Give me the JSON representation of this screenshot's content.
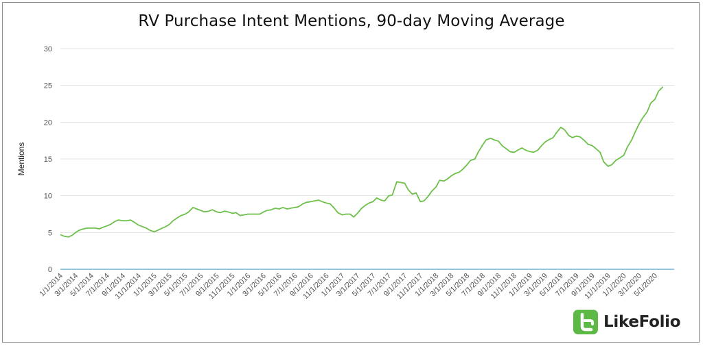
{
  "chart_data": {
    "type": "line",
    "title": "RV Purchase Intent Mentions, 90-day Moving Average",
    "xlabel": "",
    "ylabel": "Mentions",
    "ylim": [
      0,
      30
    ],
    "yticks": [
      0,
      5,
      10,
      15,
      20,
      25,
      30
    ],
    "xlim": [
      "2014-01-01",
      "2020-07-15"
    ],
    "xtick_labels": [
      "1/1/2014",
      "3/1/2014",
      "5/1/2014",
      "7/1/2014",
      "9/1/2014",
      "11/1/2014",
      "1/1/2015",
      "3/1/2015",
      "5/1/2015",
      "7/1/2015",
      "9/1/2015",
      "11/1/2015",
      "1/1/2016",
      "3/1/2016",
      "5/1/2016",
      "7/1/2016",
      "9/1/2016",
      "11/1/2016",
      "1/1/2017",
      "3/1/2017",
      "5/1/2017",
      "7/1/2017",
      "9/1/2017",
      "11/1/2017",
      "1/1/2018",
      "3/1/2018",
      "5/1/2018",
      "7/1/2018",
      "9/1/2018",
      "11/1/2018",
      "1/1/2019",
      "3/1/2019",
      "5/1/2019",
      "7/1/2019",
      "9/1/2019",
      "11/1/2019",
      "1/1/2020",
      "3/1/2020",
      "5/1/2020"
    ],
    "grid": true,
    "legend": "none",
    "series": [
      {
        "color": "#6cc04a",
        "points": [
          [
            "2014-01-01",
            4.7
          ],
          [
            "2014-01-15",
            4.5
          ],
          [
            "2014-02-01",
            4.4
          ],
          [
            "2014-02-15",
            4.6
          ],
          [
            "2014-03-01",
            5.0
          ],
          [
            "2014-03-15",
            5.3
          ],
          [
            "2014-04-01",
            5.5
          ],
          [
            "2014-04-15",
            5.6
          ],
          [
            "2014-05-01",
            5.6
          ],
          [
            "2014-05-15",
            5.6
          ],
          [
            "2014-06-01",
            5.5
          ],
          [
            "2014-06-15",
            5.7
          ],
          [
            "2014-07-01",
            5.9
          ],
          [
            "2014-07-15",
            6.1
          ],
          [
            "2014-08-01",
            6.5
          ],
          [
            "2014-08-15",
            6.7
          ],
          [
            "2014-09-01",
            6.6
          ],
          [
            "2014-09-15",
            6.6
          ],
          [
            "2014-10-01",
            6.7
          ],
          [
            "2014-10-15",
            6.4
          ],
          [
            "2014-11-01",
            6.0
          ],
          [
            "2014-11-15",
            5.8
          ],
          [
            "2014-12-01",
            5.6
          ],
          [
            "2014-12-15",
            5.3
          ],
          [
            "2015-01-01",
            5.1
          ],
          [
            "2015-01-15",
            5.3
          ],
          [
            "2015-02-01",
            5.6
          ],
          [
            "2015-02-15",
            5.8
          ],
          [
            "2015-03-01",
            6.1
          ],
          [
            "2015-03-15",
            6.6
          ],
          [
            "2015-04-01",
            7.0
          ],
          [
            "2015-04-15",
            7.3
          ],
          [
            "2015-05-01",
            7.5
          ],
          [
            "2015-05-15",
            7.8
          ],
          [
            "2015-06-01",
            8.4
          ],
          [
            "2015-06-15",
            8.2
          ],
          [
            "2015-07-01",
            8.0
          ],
          [
            "2015-07-15",
            7.8
          ],
          [
            "2015-08-01",
            7.9
          ],
          [
            "2015-08-15",
            8.1
          ],
          [
            "2015-09-01",
            7.8
          ],
          [
            "2015-09-15",
            7.7
          ],
          [
            "2015-10-01",
            7.9
          ],
          [
            "2015-10-15",
            7.8
          ],
          [
            "2015-11-01",
            7.6
          ],
          [
            "2015-11-15",
            7.7
          ],
          [
            "2015-12-01",
            7.3
          ],
          [
            "2015-12-15",
            7.4
          ],
          [
            "2016-01-01",
            7.5
          ],
          [
            "2016-01-15",
            7.5
          ],
          [
            "2016-02-01",
            7.5
          ],
          [
            "2016-02-15",
            7.5
          ],
          [
            "2016-03-01",
            7.8
          ],
          [
            "2016-03-15",
            8.0
          ],
          [
            "2016-04-01",
            8.1
          ],
          [
            "2016-04-15",
            8.3
          ],
          [
            "2016-05-01",
            8.2
          ],
          [
            "2016-05-15",
            8.4
          ],
          [
            "2016-06-01",
            8.2
          ],
          [
            "2016-06-15",
            8.3
          ],
          [
            "2016-07-01",
            8.4
          ],
          [
            "2016-07-15",
            8.5
          ],
          [
            "2016-08-01",
            8.9
          ],
          [
            "2016-08-15",
            9.1
          ],
          [
            "2016-09-01",
            9.2
          ],
          [
            "2016-09-15",
            9.3
          ],
          [
            "2016-10-01",
            9.4
          ],
          [
            "2016-10-15",
            9.2
          ],
          [
            "2016-11-01",
            9.0
          ],
          [
            "2016-11-15",
            8.9
          ],
          [
            "2016-12-01",
            8.3
          ],
          [
            "2016-12-15",
            7.7
          ],
          [
            "2017-01-01",
            7.4
          ],
          [
            "2017-01-15",
            7.5
          ],
          [
            "2017-02-01",
            7.5
          ],
          [
            "2017-02-15",
            7.1
          ],
          [
            "2017-03-01",
            7.6
          ],
          [
            "2017-03-15",
            8.2
          ],
          [
            "2017-04-01",
            8.7
          ],
          [
            "2017-04-15",
            9.0
          ],
          [
            "2017-05-01",
            9.2
          ],
          [
            "2017-05-15",
            9.7
          ],
          [
            "2017-06-01",
            9.4
          ],
          [
            "2017-06-15",
            9.3
          ],
          [
            "2017-07-01",
            10.0
          ],
          [
            "2017-07-15",
            10.1
          ],
          [
            "2017-08-01",
            11.9
          ],
          [
            "2017-08-15",
            11.8
          ],
          [
            "2017-09-01",
            11.7
          ],
          [
            "2017-09-15",
            10.8
          ],
          [
            "2017-10-01",
            10.2
          ],
          [
            "2017-10-15",
            10.4
          ],
          [
            "2017-11-01",
            9.2
          ],
          [
            "2017-11-15",
            9.3
          ],
          [
            "2017-12-01",
            9.9
          ],
          [
            "2017-12-15",
            10.6
          ],
          [
            "2018-01-01",
            11.2
          ],
          [
            "2018-01-15",
            12.1
          ],
          [
            "2018-02-01",
            12.0
          ],
          [
            "2018-02-15",
            12.3
          ],
          [
            "2018-03-01",
            12.7
          ],
          [
            "2018-03-15",
            13.0
          ],
          [
            "2018-04-01",
            13.2
          ],
          [
            "2018-04-15",
            13.6
          ],
          [
            "2018-05-01",
            14.2
          ],
          [
            "2018-05-15",
            14.8
          ],
          [
            "2018-06-01",
            15.0
          ],
          [
            "2018-06-15",
            16.0
          ],
          [
            "2018-07-01",
            16.9
          ],
          [
            "2018-07-15",
            17.6
          ],
          [
            "2018-08-01",
            17.8
          ],
          [
            "2018-08-15",
            17.6
          ],
          [
            "2018-09-01",
            17.4
          ],
          [
            "2018-09-15",
            16.8
          ],
          [
            "2018-10-01",
            16.4
          ],
          [
            "2018-10-15",
            16.0
          ],
          [
            "2018-11-01",
            15.9
          ],
          [
            "2018-11-15",
            16.2
          ],
          [
            "2018-12-01",
            16.5
          ],
          [
            "2018-12-15",
            16.2
          ],
          [
            "2019-01-01",
            16.0
          ],
          [
            "2019-01-15",
            15.9
          ],
          [
            "2019-02-01",
            16.2
          ],
          [
            "2019-02-15",
            16.8
          ],
          [
            "2019-03-01",
            17.3
          ],
          [
            "2019-03-15",
            17.6
          ],
          [
            "2019-04-01",
            17.9
          ],
          [
            "2019-04-15",
            18.6
          ],
          [
            "2019-05-01",
            19.3
          ],
          [
            "2019-05-15",
            19.0
          ],
          [
            "2019-06-01",
            18.2
          ],
          [
            "2019-06-15",
            17.9
          ],
          [
            "2019-07-01",
            18.1
          ],
          [
            "2019-07-15",
            18.0
          ],
          [
            "2019-08-01",
            17.5
          ],
          [
            "2019-08-15",
            17.0
          ],
          [
            "2019-09-01",
            16.8
          ],
          [
            "2019-09-15",
            16.4
          ],
          [
            "2019-10-01",
            15.9
          ],
          [
            "2019-10-15",
            14.6
          ],
          [
            "2019-11-01",
            14.0
          ],
          [
            "2019-11-15",
            14.2
          ],
          [
            "2019-12-01",
            14.8
          ],
          [
            "2019-12-15",
            15.1
          ],
          [
            "2020-01-01",
            15.5
          ],
          [
            "2020-01-15",
            16.6
          ],
          [
            "2020-02-01",
            17.6
          ],
          [
            "2020-02-15",
            18.7
          ],
          [
            "2020-03-01",
            19.8
          ],
          [
            "2020-03-15",
            20.6
          ],
          [
            "2020-04-01",
            21.4
          ],
          [
            "2020-04-15",
            22.6
          ],
          [
            "2020-05-01",
            23.1
          ],
          [
            "2020-05-15",
            24.2
          ],
          [
            "2020-06-01",
            24.8
          ]
        ]
      }
    ],
    "baseline_color": "#4aa3c8",
    "grid_color": "#e2e2e2"
  },
  "brand": {
    "logo_text": "LikeFolio",
    "logo_color": "#5cb946"
  }
}
